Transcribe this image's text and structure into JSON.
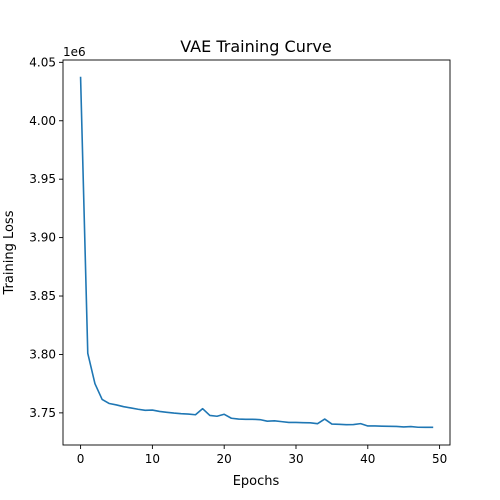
{
  "chart_data": {
    "type": "line",
    "title": "VAE Training Curve",
    "xlabel": "Epochs",
    "ylabel": "Training Loss",
    "y_offset_label": "1e6",
    "y_scale": 1000000,
    "xlim": [
      -2.45,
      51.45
    ],
    "ylim": [
      3722500,
      4052000
    ],
    "x_ticks": [
      0,
      10,
      20,
      30,
      40,
      50
    ],
    "y_ticks": [
      3750000,
      3800000,
      3850000,
      3900000,
      3950000,
      4000000,
      4050000
    ],
    "y_tick_labels": [
      "3.75",
      "3.80",
      "3.85",
      "3.90",
      "3.95",
      "4.00",
      "4.05"
    ],
    "grid": false,
    "legend": "none",
    "series": [
      {
        "color": "#1f77b4",
        "x": [
          0,
          1,
          2,
          3,
          4,
          5,
          6,
          7,
          8,
          9,
          10,
          11,
          12,
          13,
          14,
          15,
          16,
          17,
          18,
          19,
          20,
          21,
          22,
          23,
          24,
          25,
          26,
          27,
          28,
          29,
          30,
          31,
          32,
          33,
          34,
          35,
          36,
          37,
          38,
          39,
          40,
          41,
          42,
          43,
          44,
          45,
          46,
          47,
          48,
          49
        ],
        "y": [
          4037000,
          3801000,
          3775000,
          3761500,
          3758000,
          3756800,
          3755300,
          3754200,
          3753100,
          3752200,
          3752400,
          3751200,
          3750500,
          3749800,
          3749300,
          3749000,
          3748400,
          3753600,
          3747800,
          3747100,
          3748800,
          3745400,
          3744700,
          3744500,
          3744500,
          3744200,
          3742900,
          3743200,
          3742500,
          3741800,
          3741800,
          3741600,
          3741500,
          3740700,
          3744700,
          3740400,
          3740200,
          3739900,
          3740000,
          3740800,
          3738800,
          3738800,
          3738600,
          3738500,
          3738400,
          3738000,
          3738300,
          3737700,
          3737600,
          3737600
        ]
      }
    ]
  }
}
